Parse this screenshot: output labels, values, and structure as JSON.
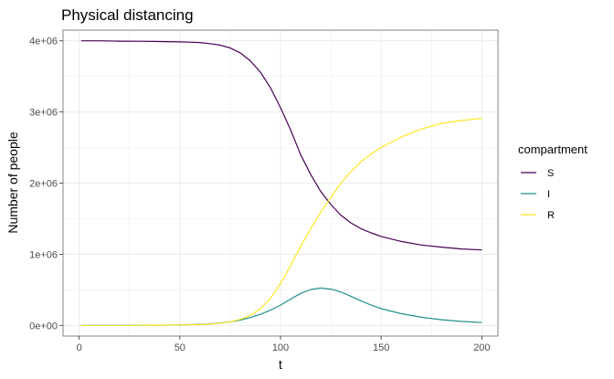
{
  "chart_data": {
    "type": "line",
    "title": "Physical distancing",
    "xlabel": "t",
    "ylabel": "Number of people",
    "xlim": [
      -8,
      208
    ],
    "ylim": [
      -150000,
      4150000
    ],
    "x_ticks": [
      0,
      50,
      100,
      150,
      200
    ],
    "x_tick_labels": [
      "0",
      "50",
      "100",
      "150",
      "200"
    ],
    "y_ticks": [
      0,
      1000000,
      2000000,
      3000000,
      4000000
    ],
    "y_tick_labels": [
      "0e+00",
      "1e+06",
      "2e+06",
      "3e+06",
      "4e+06"
    ],
    "grid": true,
    "legend": {
      "title": "compartment",
      "position": "right"
    },
    "series": [
      {
        "name": "S",
        "color": "#440154",
        "x": [
          1,
          10,
          20,
          30,
          40,
          50,
          55,
          60,
          65,
          70,
          75,
          80,
          85,
          90,
          95,
          100,
          105,
          110,
          115,
          120,
          125,
          130,
          135,
          140,
          145,
          150,
          160,
          170,
          180,
          190,
          200
        ],
        "y": [
          4000000,
          4000000,
          3995000,
          3993000,
          3990000,
          3985000,
          3980000,
          3975000,
          3960000,
          3940000,
          3900000,
          3830000,
          3720000,
          3560000,
          3340000,
          3060000,
          2750000,
          2400000,
          2120000,
          1880000,
          1700000,
          1550000,
          1440000,
          1360000,
          1300000,
          1250000,
          1180000,
          1130000,
          1100000,
          1075000,
          1060000
        ]
      },
      {
        "name": "I",
        "color": "#21908C",
        "x": [
          1,
          20,
          40,
          50,
          60,
          65,
          70,
          75,
          80,
          85,
          90,
          95,
          100,
          105,
          110,
          115,
          120,
          125,
          130,
          135,
          140,
          145,
          150,
          160,
          170,
          180,
          190,
          200
        ],
        "y": [
          0,
          1000,
          3000,
          7000,
          15000,
          22000,
          33000,
          50000,
          75000,
          110000,
          155000,
          215000,
          285000,
          370000,
          450000,
          505000,
          525000,
          510000,
          470000,
          410000,
          345000,
          285000,
          235000,
          165000,
          115000,
          80000,
          55000,
          40000
        ]
      },
      {
        "name": "R",
        "color": "#FDE725",
        "x": [
          1,
          20,
          40,
          50,
          60,
          65,
          70,
          75,
          80,
          85,
          90,
          95,
          100,
          105,
          110,
          115,
          120,
          125,
          130,
          135,
          140,
          145,
          150,
          160,
          170,
          180,
          190,
          200
        ],
        "y": [
          0,
          0,
          3000,
          6000,
          12000,
          18000,
          30000,
          50000,
          85000,
          140000,
          235000,
          380000,
          590000,
          840000,
          1110000,
          1360000,
          1590000,
          1800000,
          2000000,
          2160000,
          2300000,
          2410000,
          2500000,
          2650000,
          2760000,
          2840000,
          2880000,
          2910000
        ]
      }
    ]
  }
}
